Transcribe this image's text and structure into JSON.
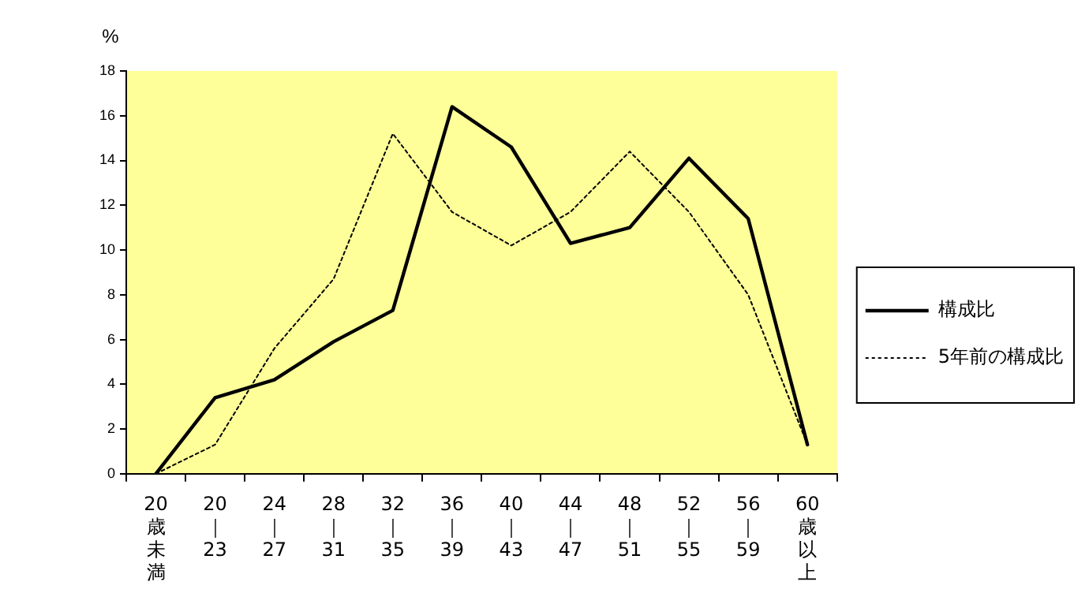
{
  "chart_data": {
    "type": "line",
    "ylabel": "%",
    "categories": [
      "20歳未満",
      "20｜23",
      "24｜27",
      "28｜31",
      "32｜35",
      "36｜39",
      "40｜43",
      "44｜47",
      "48｜51",
      "52｜55",
      "56｜59",
      "60歳以上"
    ],
    "series": [
      {
        "name": "構成比",
        "color": "#000000",
        "line_style": "solid",
        "values": [
          0,
          3.4,
          4.2,
          5.9,
          7.3,
          16.4,
          14.6,
          10.3,
          11.0,
          14.1,
          11.4,
          1.3
        ]
      },
      {
        "name": "5年前の構成比",
        "color": "#000000",
        "line_style": "dotted",
        "values": [
          0,
          1.3,
          5.6,
          8.7,
          15.2,
          11.7,
          10.2,
          11.7,
          14.4,
          11.7,
          8.0,
          1.3
        ]
      }
    ],
    "ylim": [
      0,
      18
    ],
    "yticks": [
      0,
      2,
      4,
      6,
      8,
      10,
      12,
      14,
      16,
      18
    ],
    "grid": false,
    "legend": "right",
    "marker": "none"
  }
}
